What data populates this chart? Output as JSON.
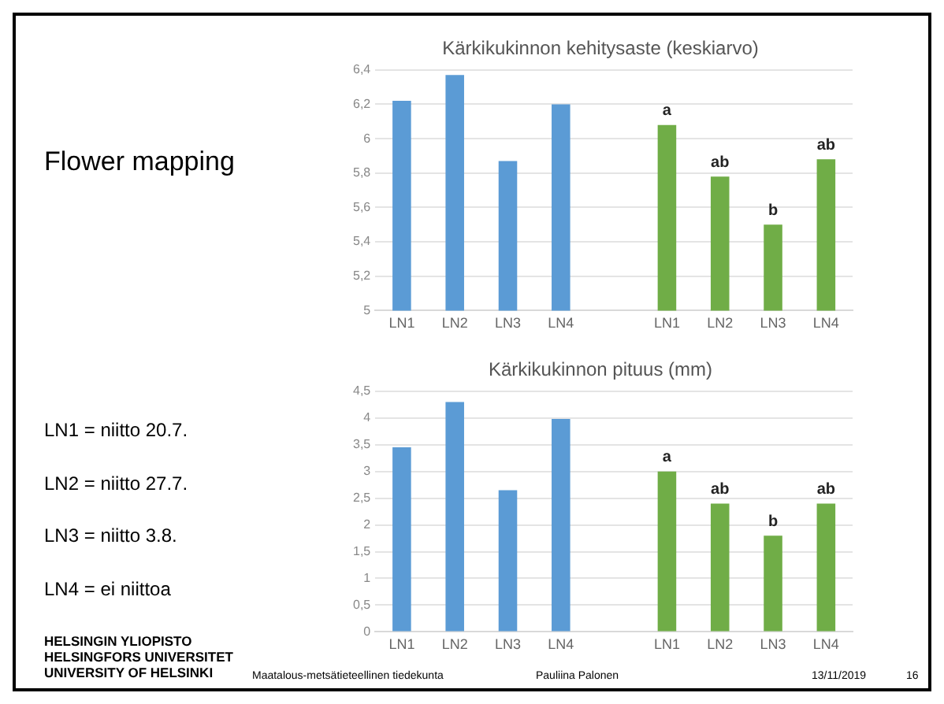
{
  "chart_data": [
    {
      "type": "other",
      "title": "Flower mapping",
      "annotations": [
        "LN1 = niitto 20.7.",
        "LN2 = niitto 27.7.",
        "LN3 = niitto 3.8.",
        "LN4 = ei niittoa",
        "HELSINGIN YLIOPISTO\nHELSINGFORS UNIVERSITET\nUNIVERSITY OF HELSINKI",
        "Maatalous-metsätieteellinen tiedekunta",
        "Pauliina Palonen",
        "13/11/2019",
        "16"
      ]
    },
    {
      "type": "bar",
      "title": "Kärkikukinnon kehitysaste (keskiarvo)",
      "categories": [
        "LN1",
        "LN2",
        "LN3",
        "LN4",
        null,
        "LN1",
        "LN2",
        "LN3",
        "LN4"
      ],
      "values": [
        6.22,
        6.37,
        5.87,
        6.2,
        null,
        6.08,
        5.78,
        5.5,
        5.88
      ],
      "colors": [
        "#5b9bd5",
        "#5b9bd5",
        "#5b9bd5",
        "#5b9bd5",
        null,
        "#70ad47",
        "#70ad47",
        "#70ad47",
        "#70ad47"
      ],
      "value_labels": [
        null,
        null,
        null,
        null,
        null,
        "a",
        "ab",
        "b",
        "ab"
      ],
      "ylim": [
        5,
        6.4
      ],
      "yticks": [
        5,
        {
          "value": 5.2,
          "label": "5,2"
        },
        {
          "value": 5.4,
          "label": "5,4"
        },
        {
          "value": 5.6,
          "label": "5,6"
        },
        {
          "value": 5.8,
          "label": "5,8"
        },
        6,
        {
          "value": 6.2,
          "label": "6,2"
        },
        {
          "value": 6.4,
          "label": "6,4"
        }
      ],
      "grid": "y"
    },
    {
      "type": "bar",
      "title": "Kärkikukinnon pituus (mm)",
      "categories": [
        "LN1",
        "LN2",
        "LN3",
        "LN4",
        null,
        "LN1",
        "LN2",
        "LN3",
        "LN4"
      ],
      "values": [
        3.45,
        4.3,
        2.65,
        3.98,
        null,
        3.0,
        2.4,
        1.8,
        2.4
      ],
      "colors": [
        "#5b9bd5",
        "#5b9bd5",
        "#5b9bd5",
        "#5b9bd5",
        null,
        "#70ad47",
        "#70ad47",
        "#70ad47",
        "#70ad47"
      ],
      "value_labels": [
        null,
        null,
        null,
        null,
        null,
        "a",
        "ab",
        "b",
        "ab"
      ],
      "ylim": [
        0,
        4.5
      ],
      "yticks": [
        0,
        {
          "value": 0.5,
          "label": "0,5"
        },
        1,
        {
          "value": 1.5,
          "label": "1,5"
        },
        2,
        {
          "value": 2.5,
          "label": "2,5"
        },
        3,
        {
          "value": 3.5,
          "label": "3,5"
        },
        4,
        {
          "value": 4.5,
          "label": "4,5"
        }
      ],
      "grid": "y"
    }
  ]
}
